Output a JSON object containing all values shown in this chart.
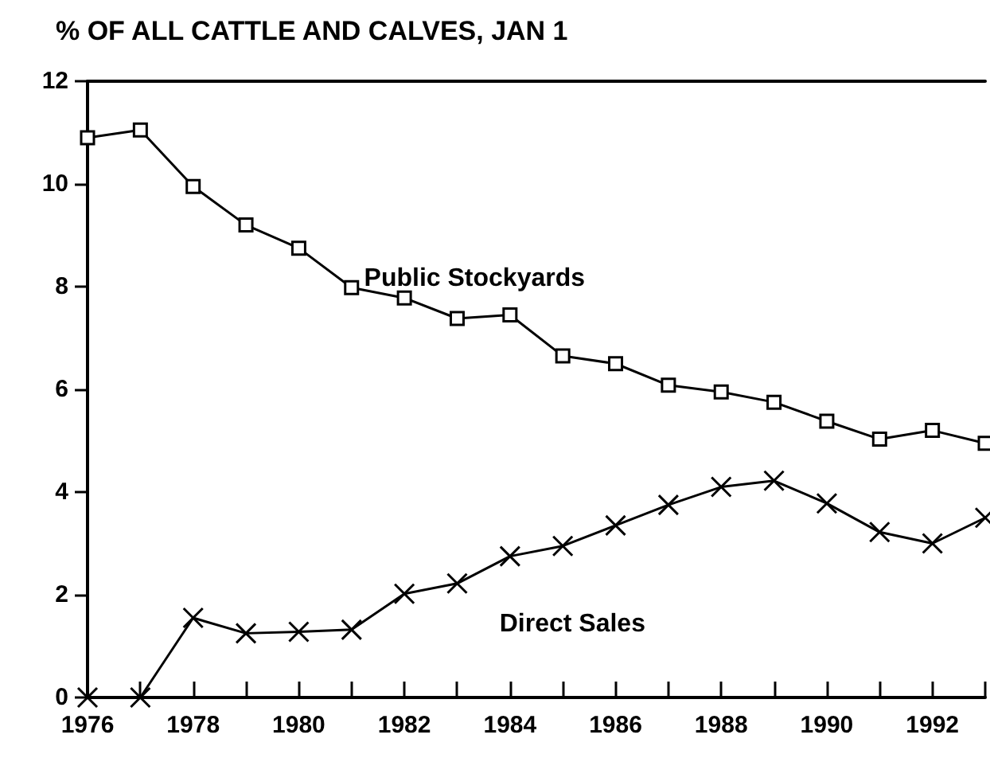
{
  "chart_data": {
    "type": "line",
    "title": "% OF ALL CATTLE AND CALVES, JAN 1",
    "x": [
      1976,
      1977,
      1978,
      1979,
      1980,
      1981,
      1982,
      1983,
      1984,
      1985,
      1986,
      1987,
      1988,
      1989,
      1990,
      1991,
      1992,
      1993
    ],
    "series": [
      {
        "name": "Public Stockyards",
        "color": "#000000",
        "marker": "square",
        "values": [
          10.9,
          11.05,
          9.95,
          9.2,
          8.75,
          7.98,
          7.78,
          7.38,
          7.45,
          6.65,
          6.5,
          6.08,
          5.95,
          5.75,
          5.38,
          5.03,
          5.2,
          4.95
        ]
      },
      {
        "name": "Direct Sales",
        "color": "#000000",
        "marker": "cross",
        "values": [
          0,
          0,
          1.55,
          1.25,
          1.28,
          1.32,
          2.02,
          2.22,
          2.75,
          2.95,
          3.35,
          3.75,
          4.1,
          4.22,
          3.78,
          3.22,
          3.0,
          3.5
        ]
      }
    ],
    "xlim": [
      1976,
      1993
    ],
    "xticks": [
      1976,
      {
        "value": 1977,
        "label": null
      },
      1978,
      {
        "value": 1979,
        "label": null
      },
      1980,
      {
        "value": 1981,
        "label": null
      },
      1982,
      {
        "value": 1983,
        "label": null
      },
      1984,
      {
        "value": 1985,
        "label": null
      },
      1986,
      {
        "value": 1987,
        "label": null
      },
      1988,
      {
        "value": 1989,
        "label": null
      },
      1990,
      {
        "value": 1991,
        "label": null
      },
      1992,
      {
        "value": 1993,
        "label": null
      }
    ],
    "ylim": [
      0,
      12
    ],
    "yticks": [
      0,
      2,
      4,
      6,
      8,
      10,
      12
    ],
    "grid": false,
    "legend": false,
    "line_style": "solid"
  }
}
